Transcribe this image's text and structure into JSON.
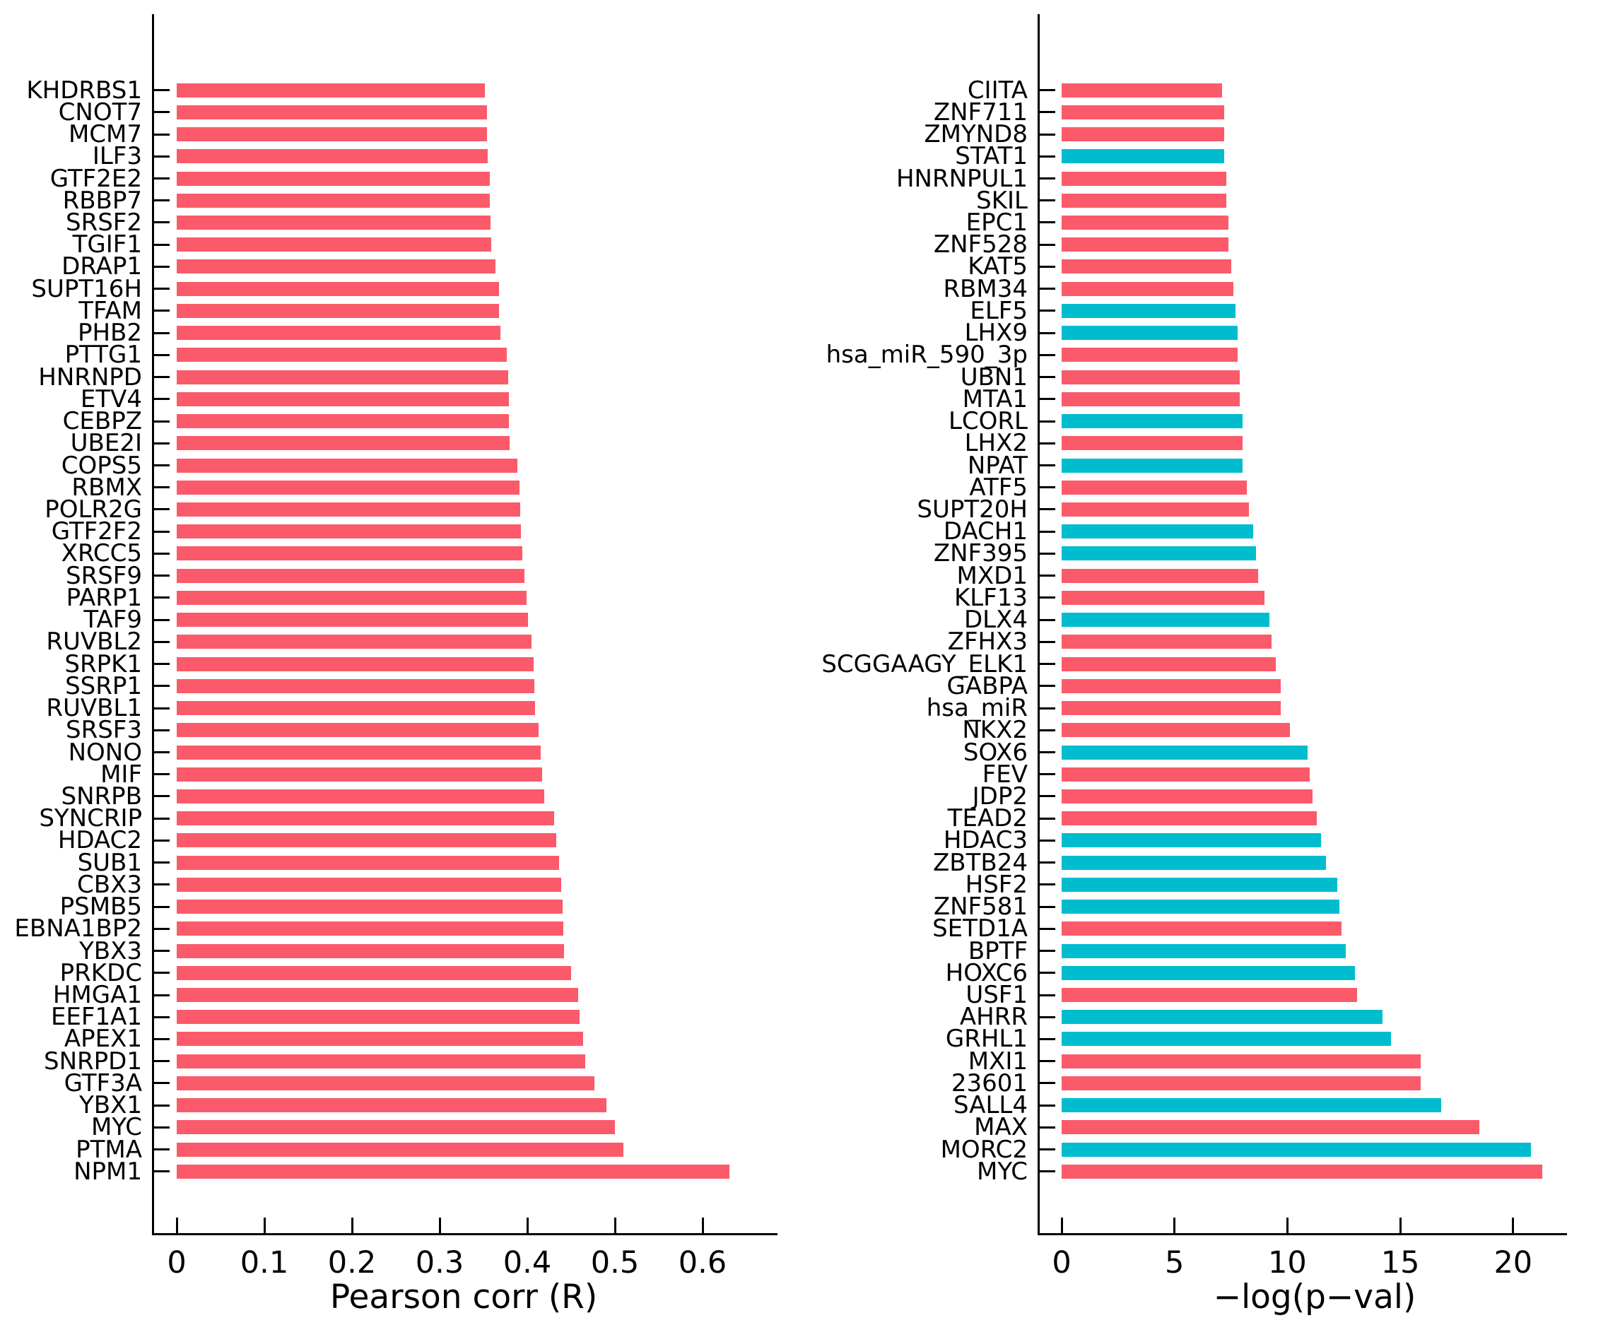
{
  "figure": {
    "background": "#ffffff"
  },
  "colors": {
    "bar_red": "#FB5A6A",
    "bar_cyan": "#00BCCF",
    "axis": "#000000",
    "text": "#000000"
  },
  "chart_data": [
    {
      "type": "bar",
      "orientation": "horizontal",
      "title": "",
      "xlabel": "Pearson corr (R)",
      "ylabel": "",
      "xlim": [
        0,
        0.655
      ],
      "xticks": [
        0,
        0.1,
        0.2,
        0.3,
        0.4,
        0.5,
        0.6
      ],
      "xtick_labels": [
        "0",
        "0.1",
        "0.2",
        "0.3",
        "0.4",
        "0.5",
        "0.6"
      ],
      "grid": false,
      "legend_position": "none",
      "bar_color": "#FB5A6A",
      "categories": [
        "KHDRBS1",
        "CNOT7",
        "MCM7",
        "ILF3",
        "GTF2E2",
        "RBBP7",
        "SRSF2",
        "TGIF1",
        "DRAP1",
        "SUPT16H",
        "TFAM",
        "PHB2",
        "PTTG1",
        "HNRNPD",
        "ETV4",
        "CEBPZ",
        "UBE2I",
        "COPS5",
        "RBMX",
        "POLR2G",
        "GTF2F2",
        "XRCC5",
        "SRSF9",
        "PARP1",
        "TAF9",
        "RUVBL2",
        "SRPK1",
        "SSRP1",
        "RUVBL1",
        "SRSF3",
        "NONO",
        "MIF",
        "SNRPB",
        "SYNCRIP",
        "HDAC2",
        "SUB1",
        "CBX3",
        "PSMB5",
        "EBNA1BP2",
        "YBX3",
        "PRKDC",
        "HMGA1",
        "EEF1A1",
        "APEX1",
        "SNRPD1",
        "GTF3A",
        "YBX1",
        "MYC",
        "PTMA",
        "NPM1"
      ],
      "values": [
        0.352,
        0.354,
        0.354,
        0.355,
        0.357,
        0.357,
        0.358,
        0.359,
        0.364,
        0.368,
        0.368,
        0.369,
        0.377,
        0.378,
        0.379,
        0.379,
        0.38,
        0.389,
        0.391,
        0.392,
        0.393,
        0.394,
        0.397,
        0.399,
        0.401,
        0.405,
        0.407,
        0.408,
        0.409,
        0.413,
        0.415,
        0.417,
        0.419,
        0.431,
        0.433,
        0.436,
        0.439,
        0.44,
        0.441,
        0.442,
        0.45,
        0.458,
        0.46,
        0.464,
        0.466,
        0.477,
        0.49,
        0.5,
        0.51,
        0.631
      ]
    },
    {
      "type": "bar",
      "orientation": "horizontal",
      "title": "",
      "xlabel": "−log(p−val)",
      "ylabel": "",
      "xlim": [
        0,
        21.9
      ],
      "xticks": [
        0,
        5,
        10,
        15,
        20
      ],
      "xtick_labels": [
        "0",
        "5",
        "10",
        "15",
        "20"
      ],
      "grid": false,
      "legend_position": "none",
      "categories": [
        "CIITA",
        "ZNF711",
        "ZMYND8",
        "STAT1",
        "HNRNPUL1",
        "SKIL",
        "EPC1",
        "ZNF528",
        "KAT5",
        "RBM34",
        "ELF5",
        "LHX9",
        "hsa_miR_590_3p",
        "UBN1",
        "MTA1",
        "LCORL",
        "LHX2",
        "NPAT",
        "ATF5",
        "SUPT20H",
        "DACH1",
        "ZNF395",
        "MXD1",
        "KLF13",
        "DLX4",
        "ZFHX3",
        "SCGGAAGY_ELK1",
        "GABPA",
        "hsa_miR",
        "NKX2",
        "SOX6",
        "FEV",
        "JDP2",
        "TEAD2",
        "HDAC3",
        "ZBTB24",
        "HSF2",
        "ZNF581",
        "SETD1A",
        "BPTF",
        "HOXC6",
        "USF1",
        "AHRR",
        "GRHL1",
        "MXI1",
        "23601",
        "SALL4",
        "MAX",
        "MORC2",
        "MYC"
      ],
      "values": [
        7.1,
        7.2,
        7.2,
        7.2,
        7.3,
        7.3,
        7.4,
        7.4,
        7.5,
        7.6,
        7.7,
        7.8,
        7.8,
        7.9,
        7.9,
        8.0,
        8.0,
        8.0,
        8.2,
        8.3,
        8.5,
        8.6,
        8.7,
        9.0,
        9.2,
        9.3,
        9.5,
        9.7,
        9.7,
        10.1,
        10.9,
        11.0,
        11.1,
        11.3,
        11.5,
        11.7,
        12.2,
        12.3,
        12.4,
        12.6,
        13.0,
        13.1,
        14.2,
        14.6,
        15.9,
        15.9,
        16.8,
        18.5,
        20.8,
        21.3
      ],
      "bar_colors": [
        "#FB5A6A",
        "#FB5A6A",
        "#FB5A6A",
        "#00BCCF",
        "#FB5A6A",
        "#FB5A6A",
        "#FB5A6A",
        "#FB5A6A",
        "#FB5A6A",
        "#FB5A6A",
        "#00BCCF",
        "#00BCCF",
        "#FB5A6A",
        "#FB5A6A",
        "#FB5A6A",
        "#00BCCF",
        "#FB5A6A",
        "#00BCCF",
        "#FB5A6A",
        "#FB5A6A",
        "#00BCCF",
        "#00BCCF",
        "#FB5A6A",
        "#FB5A6A",
        "#00BCCF",
        "#FB5A6A",
        "#FB5A6A",
        "#FB5A6A",
        "#FB5A6A",
        "#FB5A6A",
        "#00BCCF",
        "#FB5A6A",
        "#FB5A6A",
        "#FB5A6A",
        "#00BCCF",
        "#00BCCF",
        "#00BCCF",
        "#00BCCF",
        "#FB5A6A",
        "#00BCCF",
        "#00BCCF",
        "#FB5A6A",
        "#00BCCF",
        "#00BCCF",
        "#FB5A6A",
        "#FB5A6A",
        "#00BCCF",
        "#FB5A6A",
        "#00BCCF",
        "#FB5A6A"
      ]
    }
  ]
}
